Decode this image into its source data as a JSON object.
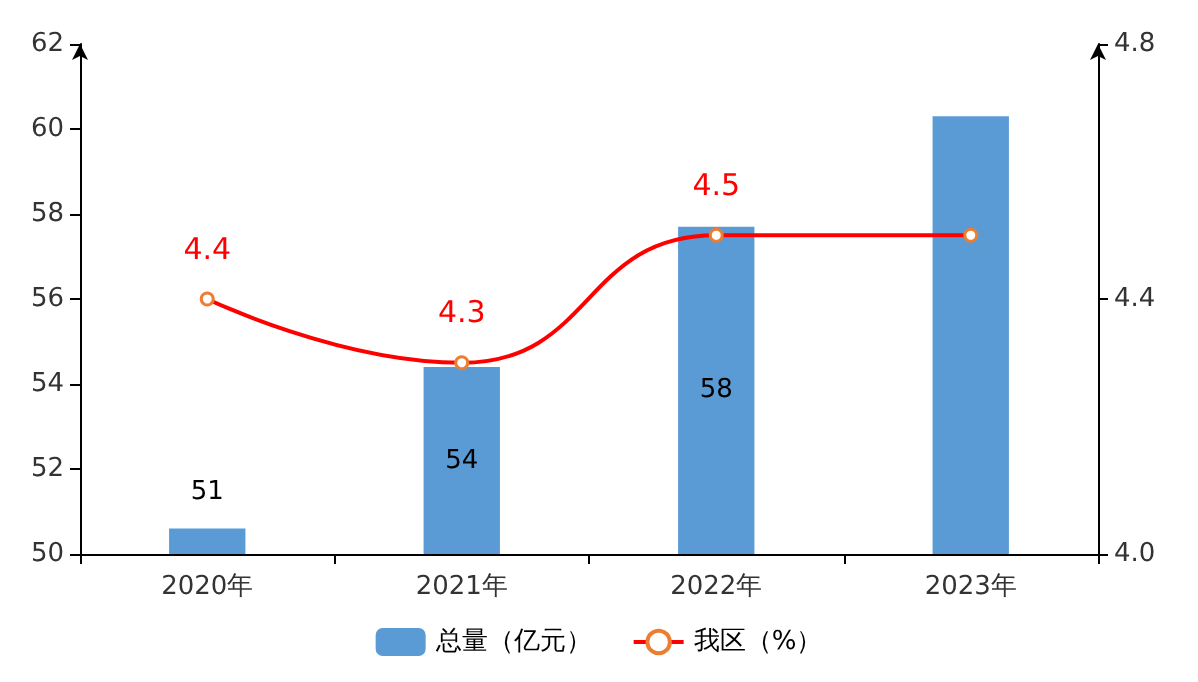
{
  "chart_data": {
    "type": "bar",
    "categories": [
      "2020年",
      "2021年",
      "2022年",
      "2023年"
    ],
    "series": [
      {
        "name": "总量（亿元）",
        "color": "#5b9bd5",
        "values": [
          50.6,
          54.4,
          57.7,
          60.3
        ],
        "value_labels": [
          "51",
          "54",
          "58",
          null
        ]
      },
      {
        "name": "我区（%）",
        "type": "line",
        "axis": "y2",
        "color": "#ff0000",
        "values": [
          4.4,
          4.3,
          4.5,
          4.5
        ],
        "value_labels": [
          "4.4",
          "4.3",
          "4.5",
          null
        ]
      }
    ],
    "ylim": [
      50,
      62
    ],
    "yticks": [
      50,
      52,
      54,
      56,
      58,
      60,
      62
    ],
    "y2lim": [
      4.0,
      4.8
    ],
    "y2ticks": [
      {
        "value": 4.0,
        "label": "4.0"
      },
      {
        "value": 4.4,
        "label": "4.4"
      },
      {
        "value": 4.8,
        "label": "4.8"
      }
    ],
    "marker": "circle",
    "line_style": "solid",
    "grid": false,
    "legend": "bottom"
  }
}
